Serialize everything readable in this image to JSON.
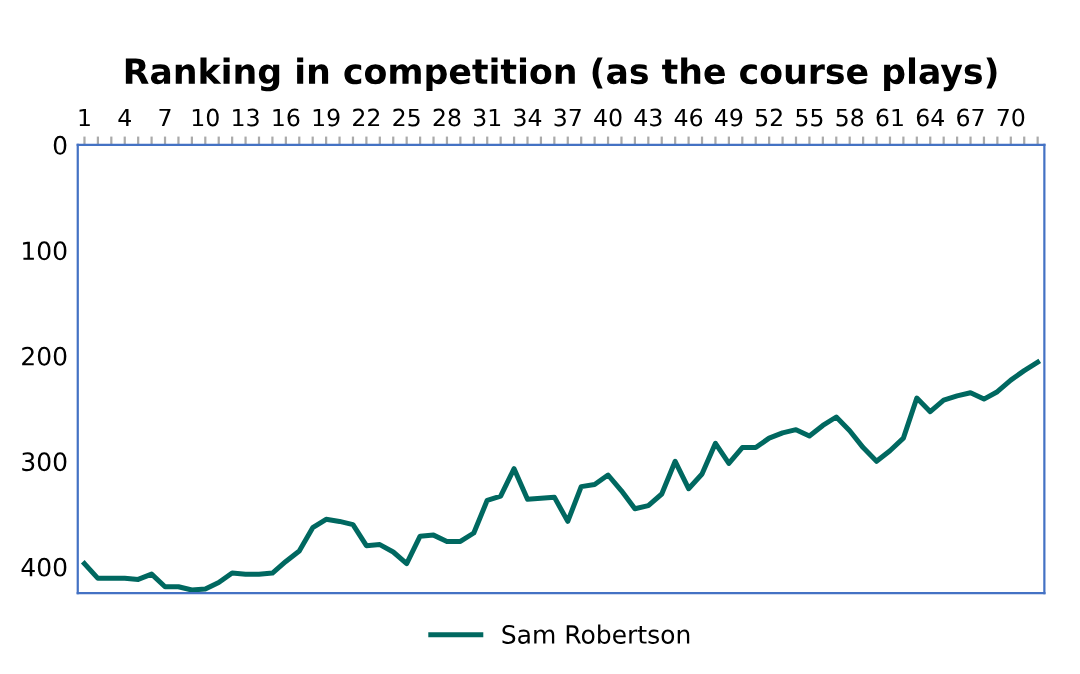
{
  "chart_data": {
    "type": "line",
    "title": "Ranking in competition (as the course plays)",
    "categories": [
      "1",
      null,
      null,
      "4",
      null,
      null,
      "7",
      null,
      null,
      "10",
      null,
      null,
      "13",
      null,
      null,
      "16",
      null,
      null,
      "19",
      null,
      null,
      "22",
      null,
      null,
      "25",
      null,
      null,
      "28",
      null,
      null,
      "31",
      null,
      null,
      "34",
      null,
      null,
      "37",
      null,
      null,
      "40",
      null,
      null,
      "43",
      null,
      null,
      "46",
      null,
      null,
      "49",
      null,
      null,
      "52",
      null,
      null,
      "55",
      null,
      null,
      "58",
      null,
      null,
      "61",
      null,
      null,
      "64",
      null,
      null,
      "67",
      null,
      null,
      "70",
      null,
      null
    ],
    "series": [
      {
        "name": "Sam Robertson",
        "color": "#006860",
        "values": [
          397,
          411,
          411,
          411,
          412,
          407,
          419,
          419,
          422,
          421,
          415,
          406,
          407,
          407,
          406,
          395,
          385,
          363,
          355,
          357,
          360,
          380,
          379,
          386,
          397,
          371,
          370,
          376,
          376,
          368,
          337,
          333,
          307,
          336,
          335,
          334,
          357,
          324,
          322,
          313,
          328,
          345,
          342,
          331,
          300,
          326,
          312,
          283,
          302,
          287,
          287,
          278,
          273,
          270,
          276,
          266,
          258,
          271,
          287,
          300,
          290,
          278,
          240,
          253,
          242,
          238,
          235,
          241,
          234,
          223,
          214,
          206
        ]
      }
    ],
    "ylim": [
      425,
      0
    ],
    "yticks": [
      0,
      100,
      200,
      300,
      400
    ],
    "grid": false,
    "legend": "bottom",
    "marker": "none",
    "line_style": "solid"
  }
}
